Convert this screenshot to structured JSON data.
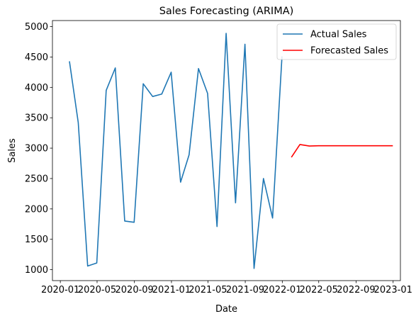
{
  "chart_data": {
    "type": "line",
    "title": "Sales Forecasting (ARIMA)",
    "xlabel": "Date",
    "ylabel": "Sales",
    "x_range": [
      "2019-12-06",
      "2023-01-25"
    ],
    "ylim": [
      820,
      5100
    ],
    "x_ticks": [
      {
        "date": "2020-01-01",
        "label": "2020-01"
      },
      {
        "date": "2020-05-01",
        "label": "2020-05"
      },
      {
        "date": "2020-09-01",
        "label": "2020-09"
      },
      {
        "date": "2021-01-01",
        "label": "2021-01"
      },
      {
        "date": "2021-05-01",
        "label": "2021-05"
      },
      {
        "date": "2021-09-01",
        "label": "2021-09"
      },
      {
        "date": "2022-01-01",
        "label": "2022-01"
      },
      {
        "date": "2022-05-01",
        "label": "2022-05"
      },
      {
        "date": "2022-09-01",
        "label": "2022-09"
      },
      {
        "date": "2023-01-01",
        "label": "2023-01"
      }
    ],
    "y_ticks": [
      {
        "value": 1000,
        "label": "1000"
      },
      {
        "value": 1500,
        "label": "1500"
      },
      {
        "value": 2000,
        "label": "2000"
      },
      {
        "value": 2500,
        "label": "2500"
      },
      {
        "value": 3000,
        "label": "3000"
      },
      {
        "value": 3500,
        "label": "3500"
      },
      {
        "value": 4000,
        "label": "4000"
      },
      {
        "value": 4500,
        "label": "4500"
      },
      {
        "value": 5000,
        "label": "5000"
      }
    ],
    "grid": false,
    "legend": "top-right",
    "series": [
      {
        "name": "Actual Sales",
        "color": "#1f77b4",
        "x": [
          "2020-01-31",
          "2020-02-29",
          "2020-03-31",
          "2020-04-30",
          "2020-05-31",
          "2020-06-30",
          "2020-07-31",
          "2020-08-31",
          "2020-09-30",
          "2020-10-31",
          "2020-11-30",
          "2020-12-31",
          "2021-01-31",
          "2021-02-28",
          "2021-03-31",
          "2021-04-30",
          "2021-05-31",
          "2021-06-30",
          "2021-07-31",
          "2021-08-31",
          "2021-09-30",
          "2021-10-31",
          "2021-11-30",
          "2021-12-31"
        ],
        "y": [
          4430,
          3420,
          1060,
          1110,
          3950,
          4320,
          1800,
          1780,
          4060,
          3850,
          3890,
          4250,
          2440,
          2890,
          4310,
          3900,
          1710,
          4890,
          2100,
          4710,
          1020,
          2500,
          1850,
          4510
        ]
      },
      {
        "name": "Forecasted Sales",
        "color": "#ff0000",
        "x": [
          "2022-01-31",
          "2022-02-28",
          "2022-03-31",
          "2022-04-30",
          "2022-05-31",
          "2022-06-30",
          "2022-07-31",
          "2022-08-31",
          "2022-09-30",
          "2022-10-31",
          "2022-11-30",
          "2022-12-31"
        ],
        "y": [
          2850,
          3060,
          3035,
          3040,
          3040,
          3040,
          3040,
          3040,
          3040,
          3040,
          3040,
          3040
        ]
      }
    ]
  }
}
